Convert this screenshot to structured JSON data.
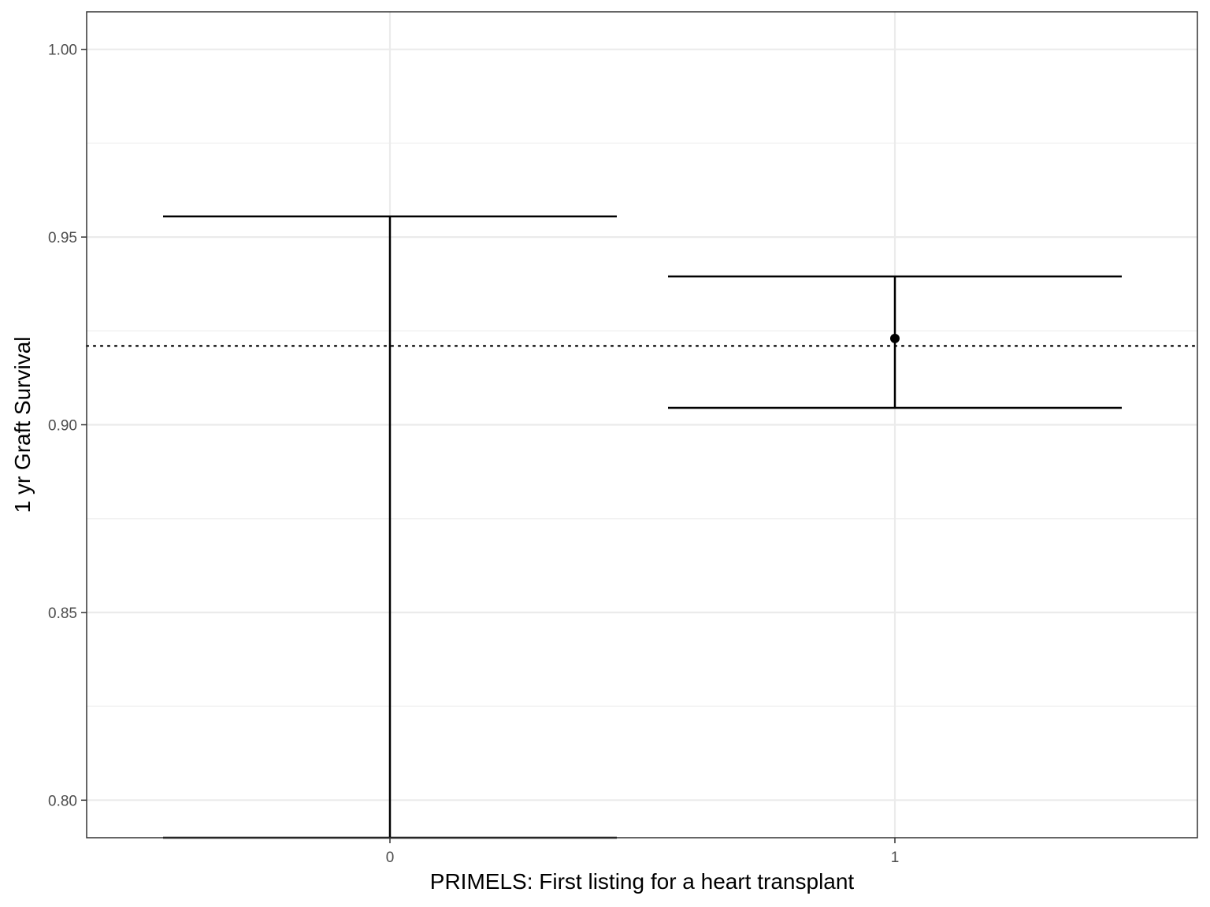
{
  "chart_data": {
    "type": "errorbar",
    "xlabel": "PRIMELS: First listing for a heart transplant",
    "ylabel": "1 yr Graft Survival",
    "ylim": [
      0.79,
      1.01
    ],
    "y_ticks": [
      0.8,
      0.85,
      0.9,
      0.95,
      1.0
    ],
    "y_tick_labels": [
      "0.80",
      "0.85",
      "0.90",
      "0.95",
      "1.00"
    ],
    "categories": [
      "0",
      "1"
    ],
    "points": [
      {
        "category": "0",
        "estimate": null,
        "lower": 0.79,
        "upper": 0.9555
      },
      {
        "category": "1",
        "estimate": 0.923,
        "lower": 0.9045,
        "upper": 0.9395
      }
    ],
    "reference_line": {
      "y": 0.921,
      "style": "dotted"
    },
    "grid": true,
    "theme": "black-and-white",
    "colors": {
      "mark": "#000000",
      "grid_major": "#ebebeb",
      "grid_minor": "#f2f2f2",
      "panel_border": "#333333",
      "tick_text": "#4d4d4d"
    }
  }
}
